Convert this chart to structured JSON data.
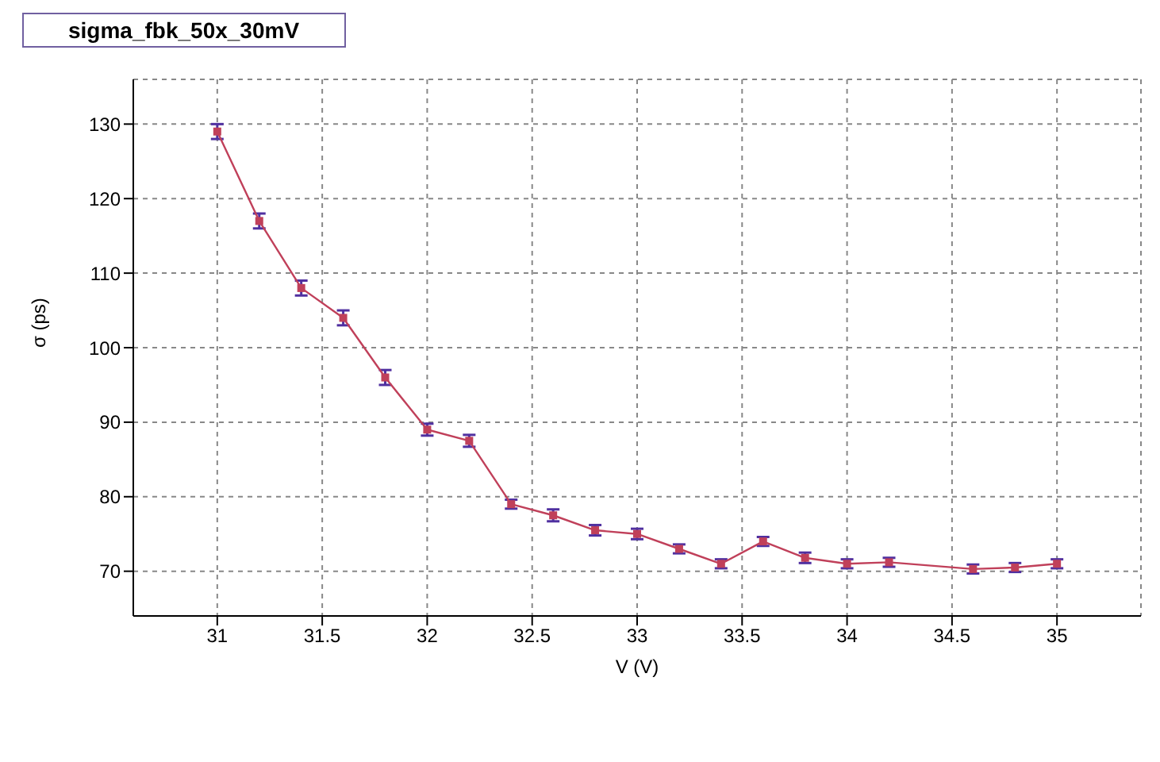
{
  "chart_data": {
    "type": "line",
    "title": "sigma_fbk_50x_30mV",
    "xlabel": "V (V)",
    "ylabel": "σ (ps)",
    "x": [
      31,
      31.2,
      31.4,
      31.6,
      31.8,
      32,
      32.2,
      32.4,
      32.6,
      32.8,
      33,
      33.2,
      33.4,
      33.6,
      33.8,
      34,
      34.2,
      34.6,
      34.8,
      35
    ],
    "series": [
      {
        "color": "#c0405a",
        "values": [
          129,
          117,
          108,
          104,
          96,
          89,
          87.5,
          79,
          77.5,
          75.5,
          75,
          73,
          71,
          74,
          71.8,
          71,
          71.2,
          70.3,
          70.5,
          71
        ],
        "errors": [
          1,
          1,
          1,
          1,
          1,
          0.8,
          0.8,
          0.6,
          0.8,
          0.7,
          0.7,
          0.6,
          0.6,
          0.6,
          0.7,
          0.6,
          0.6,
          0.6,
          0.6,
          0.6
        ]
      }
    ],
    "xlim": [
      30.6,
      35.4
    ],
    "xticks": [
      31,
      31.5,
      32,
      32.5,
      33,
      33.5,
      34,
      34.5,
      35
    ],
    "ylim": [
      64,
      136
    ],
    "yticks": [
      70,
      80,
      90,
      100,
      110,
      120,
      130
    ],
    "grid": true,
    "marker": "square",
    "line_style": "solid"
  }
}
